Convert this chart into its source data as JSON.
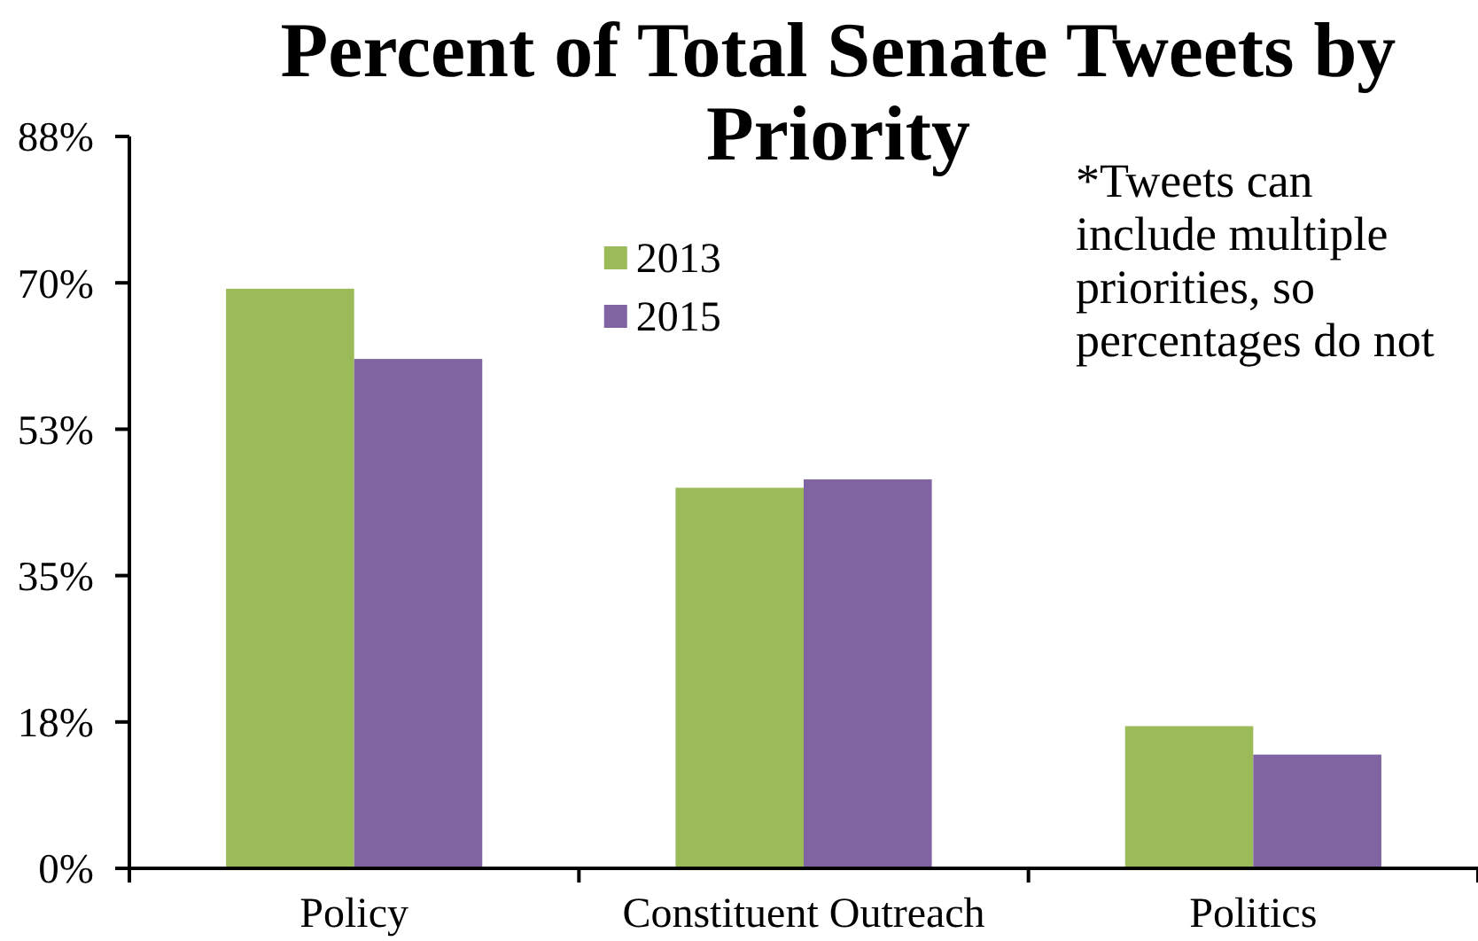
{
  "chart_data": {
    "type": "bar",
    "title": "Percent of Total Senate Tweets by Priority",
    "categories": [
      "Policy",
      "Constituent Outreach",
      "Politics"
    ],
    "series": [
      {
        "name": "2013",
        "color": "#9bbb59",
        "values": [
          69.3,
          45.5,
          17.0
        ]
      },
      {
        "name": "2015",
        "color": "#8064a2",
        "values": [
          60.9,
          46.5,
          13.6
        ]
      }
    ],
    "ylim": [
      0,
      87.5
    ],
    "yticks": [
      {
        "value": 0,
        "label": "0%"
      },
      {
        "value": 17.5,
        "label": "18%"
      },
      {
        "value": 35,
        "label": "35%"
      },
      {
        "value": 52.5,
        "label": "53%"
      },
      {
        "value": 70,
        "label": "70%"
      },
      {
        "value": 87.5,
        "label": "88%"
      }
    ],
    "legend": "top",
    "annotations": [
      "*Tweets can include multiple priorities, so percentages do not"
    ]
  }
}
